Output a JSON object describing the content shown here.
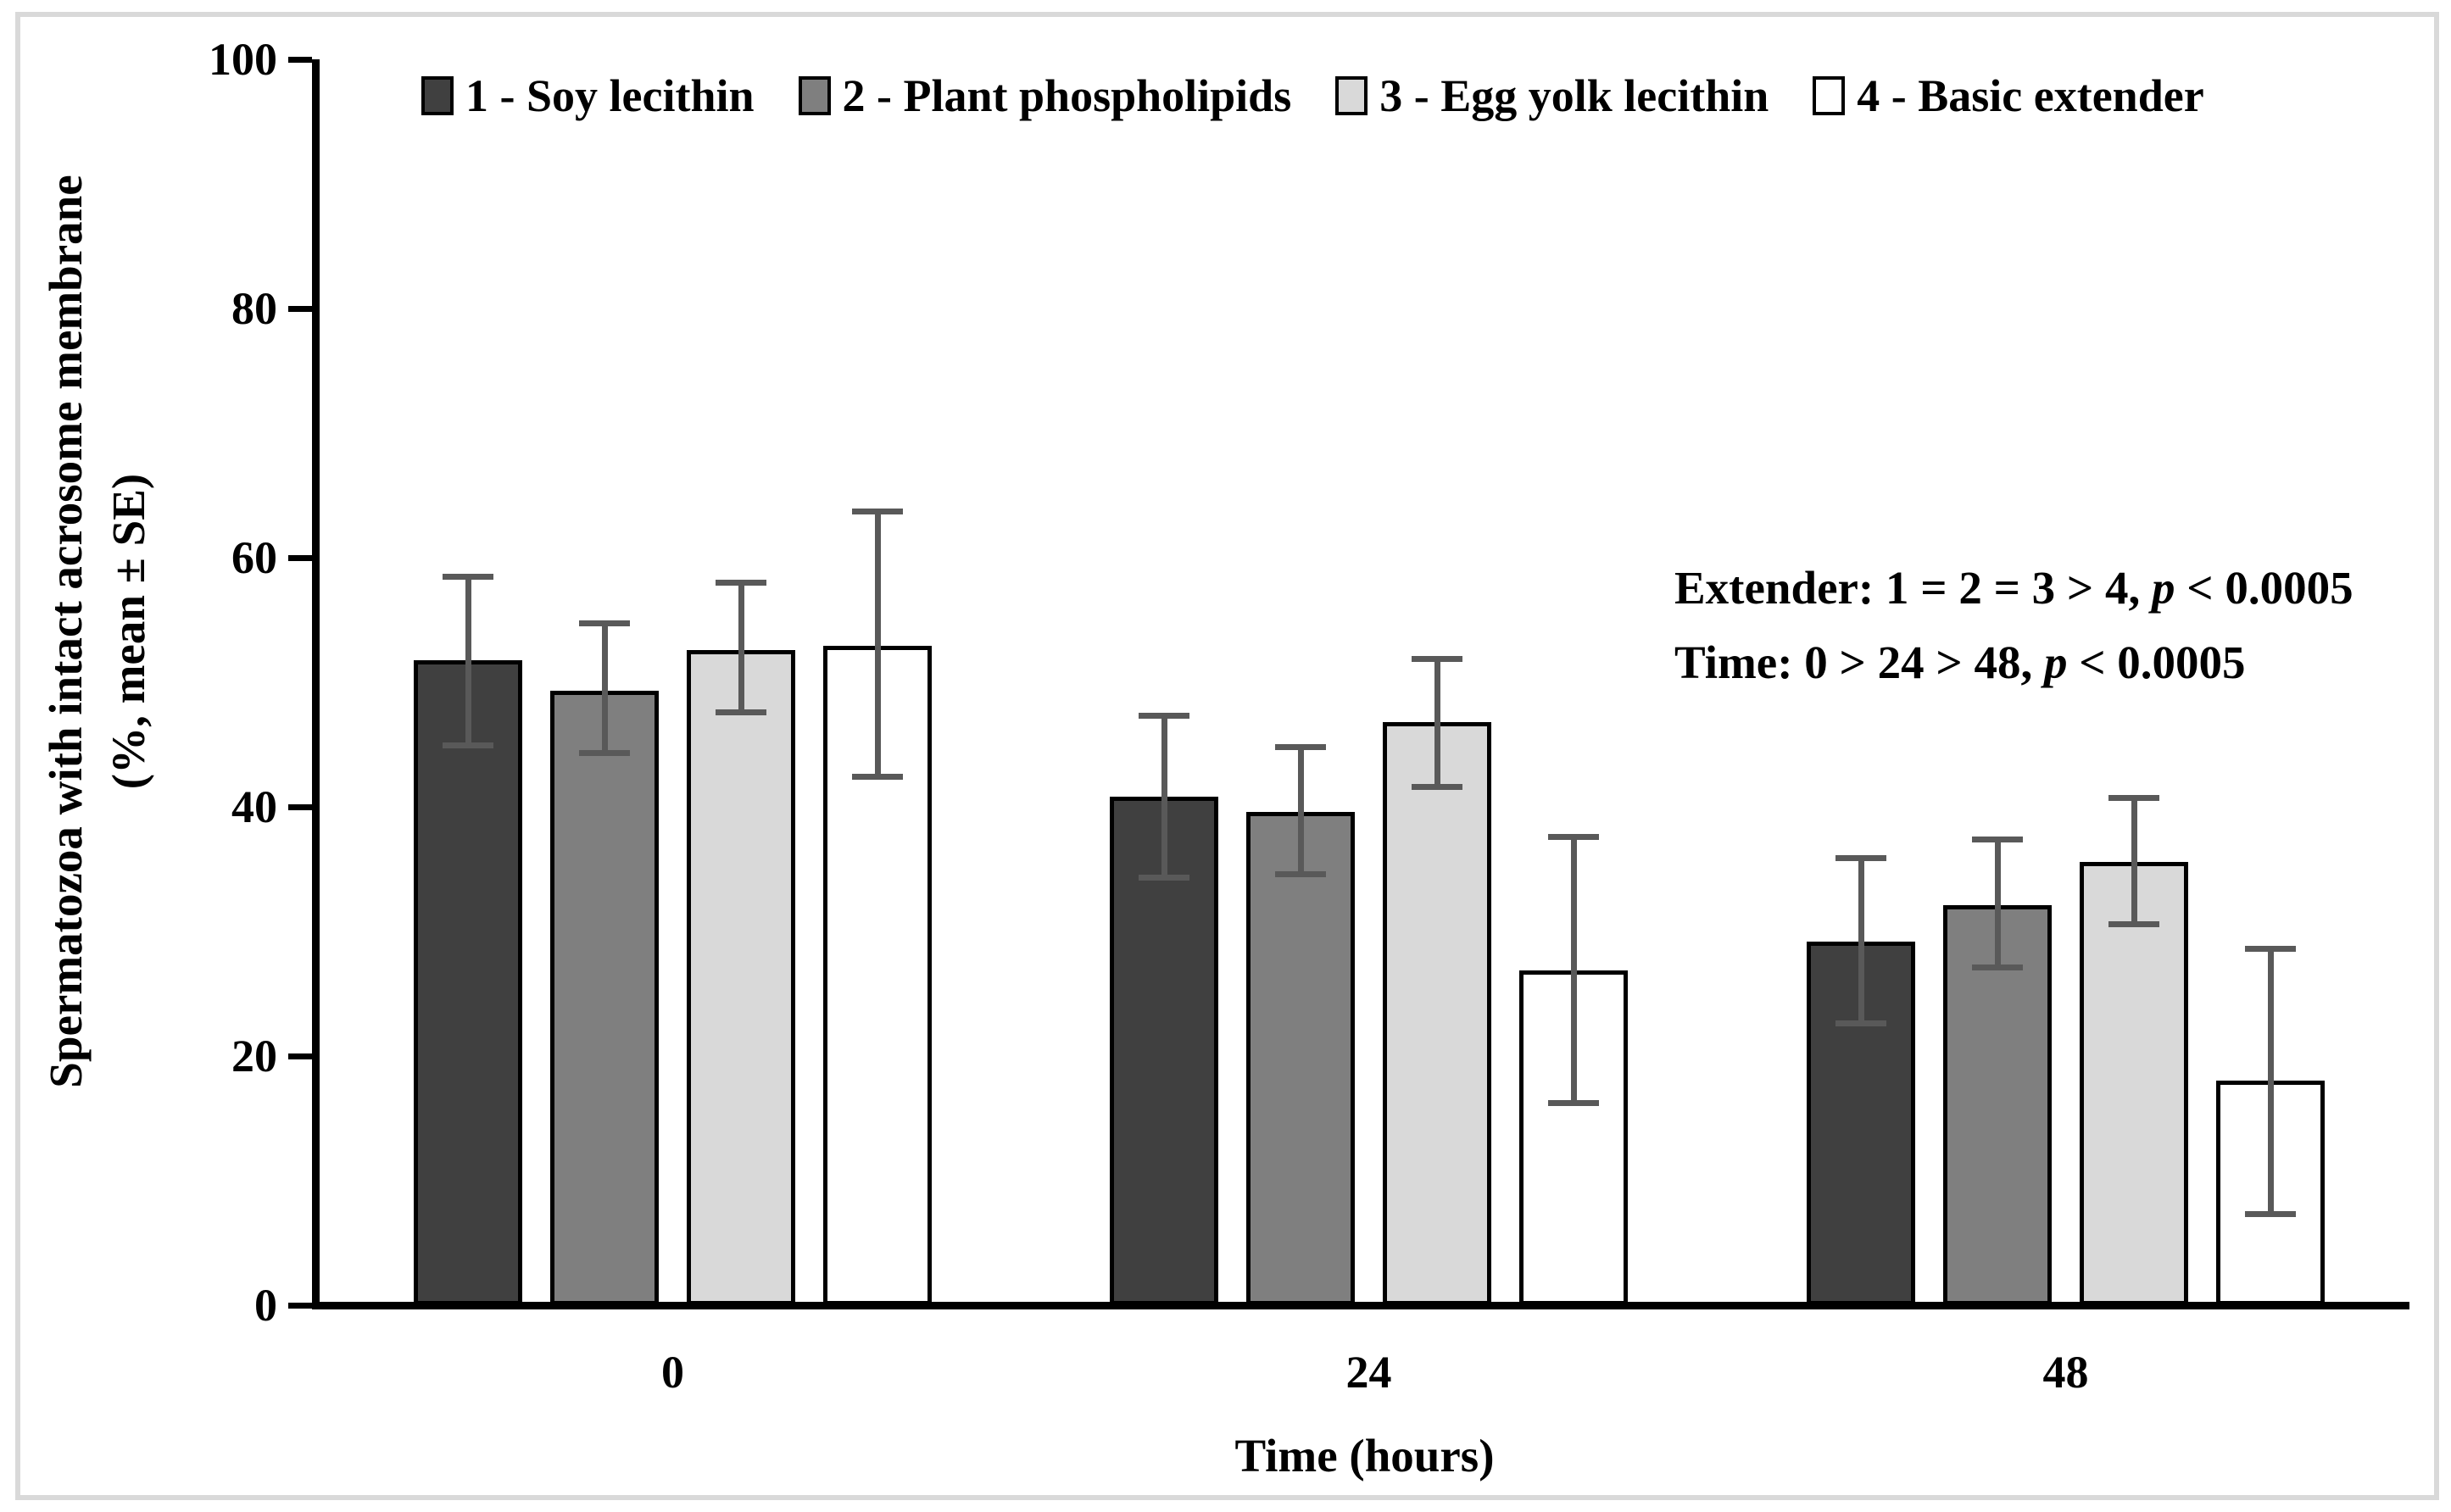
{
  "chart_data": {
    "type": "bar",
    "title": "",
    "xlabel": "Time (hours)",
    "ylabel_line1": "Spermatozoa with intact acrosome membrane",
    "ylabel_line2": "(%, mean ± SE)",
    "categories": [
      "0",
      "24",
      "48"
    ],
    "yticks": [
      "0",
      "20",
      "40",
      "60",
      "80",
      "100"
    ],
    "ylim": [
      0,
      100
    ],
    "grid": false,
    "legend_position": "top",
    "error_bar_color": "#595959",
    "series": [
      {
        "name": "1 - Soy lecithin",
        "color": "#404040",
        "values": [
          51.8,
          40.8,
          29.2
        ],
        "error_upper": [
          58.5,
          47.3,
          35.9
        ],
        "error_lower": [
          44.9,
          34.3,
          22.6
        ]
      },
      {
        "name": "2 - Plant phospholipids",
        "color": "#7f7f7f",
        "values": [
          49.3,
          39.6,
          32.1
        ],
        "error_upper": [
          54.7,
          44.8,
          37.4
        ],
        "error_lower": [
          44.3,
          34.6,
          27.1
        ]
      },
      {
        "name": "3 - Egg yolk lecithin",
        "color": "#d9d9d9",
        "values": [
          52.6,
          46.8,
          35.6
        ],
        "error_upper": [
          58.0,
          51.9,
          40.7
        ],
        "error_lower": [
          47.6,
          41.6,
          30.6
        ]
      },
      {
        "name": "4 - Basic extender",
        "color": "#ffffff",
        "values": [
          52.9,
          26.9,
          18.0
        ],
        "error_upper": [
          63.7,
          37.6,
          28.6
        ],
        "error_lower": [
          42.4,
          16.2,
          7.3
        ]
      }
    ],
    "annotations": [
      {
        "pre": "Extender: 1 = 2 = 3 > 4, ",
        "italic": "p",
        "post": " < 0.0005"
      },
      {
        "pre": "Time: 0 > 24 > 48, ",
        "italic": "p",
        "post": " < 0.0005"
      }
    ]
  }
}
